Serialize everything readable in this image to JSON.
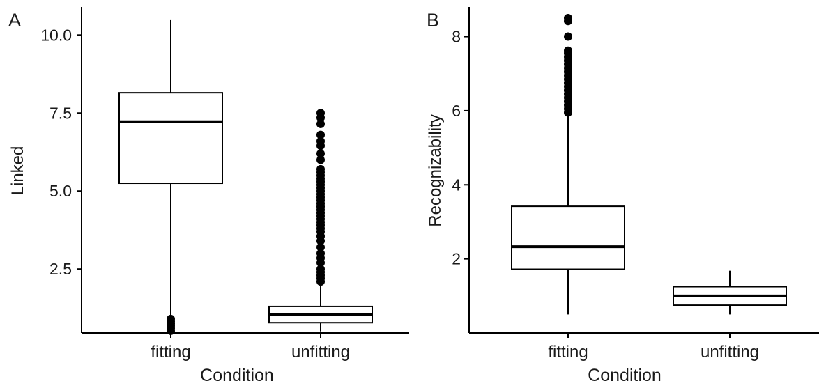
{
  "chart_data": [
    {
      "type": "box",
      "panel_label": "A",
      "xlabel": "Condition",
      "ylabel": "Linked",
      "categories": [
        "fitting",
        "unfitting"
      ],
      "ylim": [
        0.45,
        10.9
      ],
      "yticks": [
        2.5,
        5.0,
        7.5,
        10.0
      ],
      "ytick_labels": [
        "2.5",
        "5.0",
        "7.5",
        "10.0"
      ],
      "grid": false,
      "boxes": [
        {
          "category": "fitting",
          "whisker_low": 0.95,
          "q1": 5.25,
          "median": 7.22,
          "q3": 8.15,
          "whisker_high": 10.5,
          "outliers": [
            0.52,
            0.6,
            0.68,
            0.75,
            0.82,
            0.9
          ]
        },
        {
          "category": "unfitting",
          "whisker_low": 0.5,
          "q1": 0.78,
          "median": 1.03,
          "q3": 1.3,
          "whisker_high": 2.0,
          "outliers": [
            2.1,
            2.2,
            2.3,
            2.4,
            2.5,
            2.7,
            2.85,
            3.0,
            3.2,
            3.4,
            3.55,
            3.7,
            3.8,
            3.9,
            4.0,
            4.1,
            4.2,
            4.3,
            4.4,
            4.5,
            4.6,
            4.7,
            4.8,
            4.9,
            5.0,
            5.1,
            5.2,
            5.3,
            5.4,
            5.5,
            5.6,
            5.7,
            6.0,
            6.2,
            6.45,
            6.6,
            6.8,
            7.15,
            7.35,
            7.5
          ]
        }
      ]
    },
    {
      "type": "box",
      "panel_label": "B",
      "xlabel": "Condition",
      "ylabel": "Recognizability",
      "categories": [
        "fitting",
        "unfitting"
      ],
      "ylim": [
        0.0,
        8.8
      ],
      "yticks": [
        2,
        4,
        6,
        8
      ],
      "ytick_labels": [
        "2",
        "4",
        "6",
        "8"
      ],
      "grid": false,
      "boxes": [
        {
          "category": "fitting",
          "whisker_low": 0.5,
          "q1": 1.72,
          "median": 2.33,
          "q3": 3.42,
          "whisker_high": 5.9,
          "outliers": [
            5.95,
            6.05,
            6.15,
            6.25,
            6.35,
            6.45,
            6.55,
            6.65,
            6.75,
            6.85,
            6.95,
            7.05,
            7.15,
            7.25,
            7.35,
            7.45,
            7.55,
            7.62,
            8.0,
            8.42,
            8.5
          ]
        },
        {
          "category": "unfitting",
          "whisker_low": 0.5,
          "q1": 0.75,
          "median": 1.0,
          "q3": 1.25,
          "whisker_high": 1.68,
          "outliers": []
        }
      ]
    }
  ]
}
